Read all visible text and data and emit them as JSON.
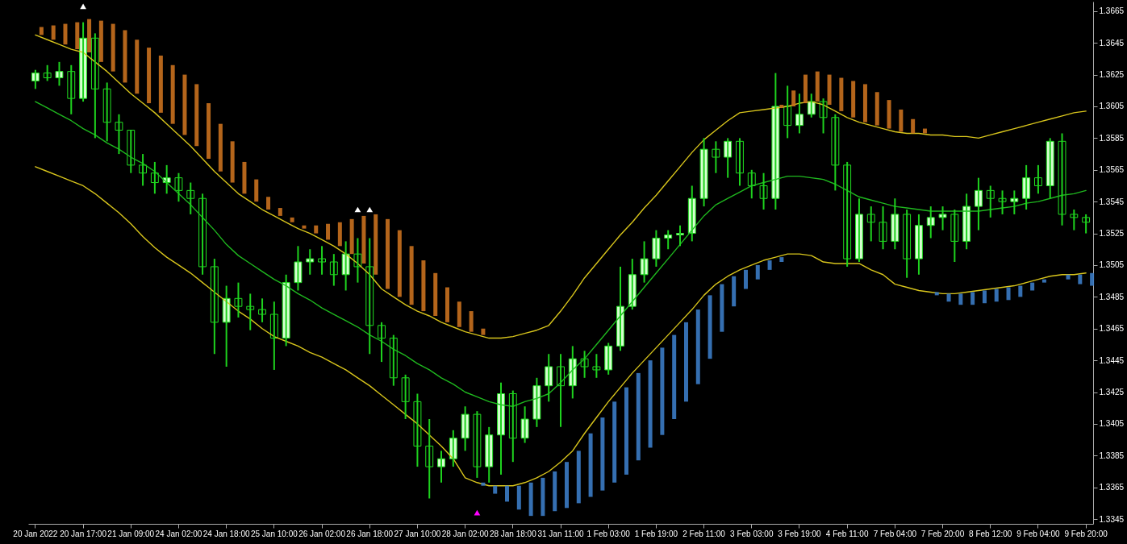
{
  "chart_data": {
    "type": "candlestick",
    "categories": [
      "20 Jan 2022",
      null,
      null,
      null,
      "20 Jan 17:00",
      null,
      null,
      null,
      "21 Jan 09:00",
      null,
      null,
      null,
      "24 Jan 02:00",
      null,
      null,
      null,
      "24 Jan 18:00",
      null,
      null,
      null,
      "25 Jan 10:00",
      null,
      null,
      null,
      "26 Jan 02:00",
      null,
      null,
      null,
      "26 Jan 18:00",
      null,
      null,
      null,
      "27 Jan 10:00",
      null,
      null,
      null,
      "28 Jan 02:00",
      null,
      null,
      null,
      "28 Jan 18:00",
      null,
      null,
      null,
      "31 Jan 11:00",
      null,
      null,
      null,
      "1 Feb 03:00",
      null,
      null,
      null,
      "1 Feb 19:00",
      null,
      null,
      null,
      "2 Feb 11:00",
      null,
      null,
      null,
      "3 Feb 03:00",
      null,
      null,
      null,
      "3 Feb 19:00",
      null,
      null,
      null,
      "4 Feb 11:00",
      null,
      null,
      null,
      "7 Feb 04:00",
      null,
      null,
      null,
      "7 Feb 20:00",
      null,
      null,
      null,
      "8 Feb 12:00",
      null,
      null,
      null,
      "9 Feb 04:00",
      null,
      null,
      null,
      "9 Feb 20:00"
    ],
    "ohlc": [
      [
        1.3621,
        1.3628,
        1.3616,
        1.3626
      ],
      [
        1.3626,
        1.3631,
        1.3621,
        1.3623
      ],
      [
        1.3623,
        1.3633,
        1.3618,
        1.3627
      ],
      [
        1.3627,
        1.3631,
        1.36,
        1.361
      ],
      [
        1.361,
        1.3658,
        1.3608,
        1.3648
      ],
      [
        1.3648,
        1.3651,
        1.3585,
        1.3616
      ],
      [
        1.3616,
        1.362,
        1.3583,
        1.3595
      ],
      [
        1.3595,
        1.36,
        1.3575,
        1.359
      ],
      [
        1.359,
        1.359,
        1.3563,
        1.3568
      ],
      [
        1.3568,
        1.3575,
        1.3555,
        1.3563
      ],
      [
        1.3563,
        1.357,
        1.355,
        1.3557
      ],
      [
        1.3557,
        1.3568,
        1.355,
        1.356
      ],
      [
        1.356,
        1.3563,
        1.3545,
        1.3552
      ],
      [
        1.3552,
        1.3557,
        1.3537,
        1.3547
      ],
      [
        1.3547,
        1.355,
        1.3499,
        1.3504
      ],
      [
        1.3504,
        1.3509,
        1.3449,
        1.3469
      ],
      [
        1.3469,
        1.3492,
        1.3441,
        1.3484
      ],
      [
        1.3484,
        1.3494,
        1.3472,
        1.3479
      ],
      [
        1.3479,
        1.3487,
        1.3464,
        1.3477
      ],
      [
        1.3477,
        1.3484,
        1.3469,
        1.3474
      ],
      [
        1.3474,
        1.3482,
        1.3439,
        1.3459
      ],
      [
        1.3459,
        1.3499,
        1.3454,
        1.3494
      ],
      [
        1.3494,
        1.3517,
        1.3489,
        1.3507
      ],
      [
        1.3507,
        1.3515,
        1.3499,
        1.3509
      ],
      [
        1.3509,
        1.3517,
        1.3499,
        1.3507
      ],
      [
        1.3507,
        1.3512,
        1.3492,
        1.3499
      ],
      [
        1.3499,
        1.352,
        1.3489,
        1.3512
      ],
      [
        1.3512,
        1.3522,
        1.3494,
        1.3504
      ],
      [
        1.3504,
        1.3522,
        1.3449,
        1.3467
      ],
      [
        1.3467,
        1.3469,
        1.3444,
        1.3459
      ],
      [
        1.3459,
        1.3461,
        1.3429,
        1.3434
      ],
      [
        1.3434,
        1.3436,
        1.3408,
        1.3419
      ],
      [
        1.3419,
        1.3424,
        1.3378,
        1.3391
      ],
      [
        1.3391,
        1.3408,
        1.3358,
        1.3378
      ],
      [
        1.3378,
        1.3388,
        1.3368,
        1.3383
      ],
      [
        1.3383,
        1.3401,
        1.3378,
        1.3396
      ],
      [
        1.3396,
        1.3416,
        1.3388,
        1.3411
      ],
      [
        1.3411,
        1.3413,
        1.3371,
        1.3378
      ],
      [
        1.3378,
        1.3403,
        1.3368,
        1.3398
      ],
      [
        1.3398,
        1.3431,
        1.3373,
        1.3424
      ],
      [
        1.3424,
        1.3426,
        1.3381,
        1.3396
      ],
      [
        1.3396,
        1.3416,
        1.3393,
        1.3408
      ],
      [
        1.3408,
        1.3434,
        1.3403,
        1.3429
      ],
      [
        1.3429,
        1.3449,
        1.3419,
        1.3441
      ],
      [
        1.3441,
        1.3449,
        1.3403,
        1.3429
      ],
      [
        1.3429,
        1.3454,
        1.3421,
        1.3446
      ],
      [
        1.3446,
        1.3451,
        1.3434,
        1.3441
      ],
      [
        1.3441,
        1.3449,
        1.3434,
        1.3439
      ],
      [
        1.3439,
        1.3456,
        1.3436,
        1.3454
      ],
      [
        1.3454,
        1.3504,
        1.3451,
        1.3479
      ],
      [
        1.3479,
        1.3509,
        1.3477,
        1.3499
      ],
      [
        1.3499,
        1.352,
        1.3494,
        1.3509
      ],
      [
        1.3509,
        1.3527,
        1.3504,
        1.3522
      ],
      [
        1.3522,
        1.3527,
        1.3515,
        1.3524
      ],
      [
        1.3524,
        1.353,
        1.3517,
        1.3525
      ],
      [
        1.3525,
        1.3555,
        1.352,
        1.3547
      ],
      [
        1.3547,
        1.3585,
        1.3542,
        1.3578
      ],
      [
        1.3578,
        1.3583,
        1.3563,
        1.3573
      ],
      [
        1.3573,
        1.3585,
        1.356,
        1.3583
      ],
      [
        1.3583,
        1.3585,
        1.3555,
        1.3563
      ],
      [
        1.3563,
        1.3565,
        1.3547,
        1.3555
      ],
      [
        1.3555,
        1.3563,
        1.354,
        1.3547
      ],
      [
        1.3547,
        1.3626,
        1.354,
        1.3605
      ],
      [
        1.3605,
        1.3618,
        1.3585,
        1.3593
      ],
      [
        1.3593,
        1.3613,
        1.3588,
        1.36
      ],
      [
        1.36,
        1.3613,
        1.3598,
        1.3608
      ],
      [
        1.3608,
        1.361,
        1.3588,
        1.3598
      ],
      [
        1.3598,
        1.36,
        1.3552,
        1.3568
      ],
      [
        1.3568,
        1.357,
        1.3504,
        1.3509
      ],
      [
        1.3509,
        1.3547,
        1.3507,
        1.3537
      ],
      [
        1.3537,
        1.3542,
        1.352,
        1.3532
      ],
      [
        1.3532,
        1.3542,
        1.3515,
        1.352
      ],
      [
        1.352,
        1.3547,
        1.3515,
        1.3537
      ],
      [
        1.3537,
        1.354,
        1.3497,
        1.3509
      ],
      [
        1.3509,
        1.3537,
        1.3499,
        1.353
      ],
      [
        1.353,
        1.3542,
        1.3522,
        1.3535
      ],
      [
        1.3535,
        1.3542,
        1.3527,
        1.3537
      ],
      [
        1.3537,
        1.354,
        1.3507,
        1.352
      ],
      [
        1.352,
        1.355,
        1.3515,
        1.3542
      ],
      [
        1.3542,
        1.356,
        1.3527,
        1.3552
      ],
      [
        1.3552,
        1.3555,
        1.3535,
        1.3547
      ],
      [
        1.3547,
        1.3552,
        1.3537,
        1.3545
      ],
      [
        1.3545,
        1.3552,
        1.3537,
        1.3547
      ],
      [
        1.3547,
        1.3568,
        1.354,
        1.356
      ],
      [
        1.356,
        1.3568,
        1.355,
        1.3555
      ],
      [
        1.3555,
        1.3585,
        1.3547,
        1.3583
      ],
      [
        1.3583,
        1.3588,
        1.353,
        1.3537
      ],
      [
        1.3537,
        1.354,
        1.3527,
        1.3535
      ],
      [
        1.3535,
        1.3537,
        1.3525,
        1.3532
      ]
    ],
    "series": [
      {
        "type": "bar",
        "color": "#c8701e",
        "base": [
          1.365,
          1.3647,
          1.3644,
          1.3641,
          1.3639,
          1.3633,
          1.3627,
          1.362,
          1.3613,
          1.3607,
          1.3601,
          1.3594,
          1.3587,
          1.358,
          1.3572,
          1.3564,
          1.3557,
          1.355,
          1.3545,
          1.354,
          1.3536,
          1.3532,
          1.3528,
          1.3525,
          1.3521,
          1.3517,
          1.3512,
          1.3506,
          1.3499,
          1.349,
          1.3485,
          1.348,
          1.3476,
          1.3473,
          1.3469,
          1.3466,
          1.3463,
          1.3461,
          null,
          null,
          null,
          null,
          null,
          null,
          null,
          null,
          null,
          null,
          null,
          null,
          null,
          null,
          null,
          null,
          null,
          null,
          null,
          null,
          null,
          null,
          null,
          null,
          1.3604,
          1.3605,
          1.3607,
          1.3608,
          1.3606,
          1.3602,
          1.3598,
          1.3595,
          1.3593,
          1.3591,
          1.3589,
          1.3588,
          1.3588,
          null,
          null,
          null,
          null,
          null,
          null,
          null,
          null,
          null,
          null,
          null,
          null,
          null,
          null
        ],
        "values": [
          0.0005,
          0.0009,
          0.0013,
          0.0017,
          0.0021,
          0.0026,
          0.003,
          0.0033,
          0.0034,
          0.0035,
          0.0036,
          0.0037,
          0.0038,
          0.0039,
          0.0035,
          0.003,
          0.0026,
          0.002,
          0.0014,
          0.0008,
          0.0005,
          0.0003,
          0.0002,
          0.0005,
          0.001,
          0.0015,
          0.0022,
          0.003,
          0.0038,
          0.0044,
          0.0042,
          0.0037,
          0.0032,
          0.0027,
          0.0022,
          0.0016,
          0.0013,
          0.0004,
          null,
          null,
          null,
          null,
          null,
          null,
          null,
          null,
          null,
          null,
          null,
          null,
          null,
          null,
          null,
          null,
          null,
          null,
          null,
          null,
          null,
          null,
          null,
          null,
          0.0002,
          0.001,
          0.0018,
          0.0019,
          0.0019,
          0.0021,
          0.0023,
          0.0024,
          0.0021,
          0.0018,
          0.0014,
          0.0009,
          0.0003,
          null,
          null,
          null,
          null,
          null,
          null,
          null,
          null,
          null,
          null,
          null,
          null,
          null,
          null
        ]
      },
      {
        "type": "bar",
        "color": "#3b7bc4",
        "base": [
          null,
          null,
          null,
          null,
          null,
          null,
          null,
          null,
          null,
          null,
          null,
          null,
          null,
          null,
          null,
          null,
          null,
          null,
          null,
          null,
          null,
          null,
          null,
          null,
          null,
          null,
          null,
          null,
          null,
          null,
          null,
          null,
          null,
          null,
          null,
          null,
          null,
          1.3368,
          1.3366,
          1.3366,
          1.3366,
          1.3368,
          1.3371,
          1.3375,
          1.3381,
          1.3388,
          1.3399,
          1.3409,
          1.3419,
          1.3428,
          1.3437,
          1.3445,
          1.3453,
          1.3461,
          1.3469,
          1.3477,
          1.3486,
          1.3493,
          1.3498,
          1.3502,
          1.3505,
          1.3508,
          1.351,
          null,
          null,
          null,
          null,
          null,
          null,
          null,
          null,
          null,
          null,
          null,
          null,
          1.3488,
          1.3487,
          1.3487,
          1.3488,
          1.3489,
          1.349,
          1.3491,
          1.3492,
          1.3494,
          1.3496,
          null,
          1.3499,
          1.3499,
          1.35
        ],
        "values": [
          null,
          null,
          null,
          null,
          null,
          null,
          null,
          null,
          null,
          null,
          null,
          null,
          null,
          null,
          null,
          null,
          null,
          null,
          null,
          null,
          null,
          null,
          null,
          null,
          null,
          null,
          null,
          null,
          null,
          null,
          null,
          null,
          null,
          null,
          null,
          null,
          null,
          -0.0002,
          -0.0005,
          -0.001,
          -0.0015,
          -0.0021,
          -0.0024,
          -0.0025,
          -0.0029,
          -0.0033,
          -0.004,
          -0.0046,
          -0.0051,
          -0.0055,
          -0.0055,
          -0.0055,
          -0.0055,
          -0.0053,
          -0.005,
          -0.0047,
          -0.004,
          -0.003,
          -0.0019,
          -0.0012,
          -0.0009,
          -0.0006,
          -0.0003,
          null,
          null,
          null,
          null,
          null,
          null,
          null,
          null,
          null,
          null,
          null,
          null,
          -0.0002,
          -0.0005,
          -0.0007,
          -0.0008,
          -0.0008,
          -0.0008,
          -0.0008,
          -0.0007,
          -0.0005,
          -0.0002,
          null,
          -0.0003,
          -0.0006,
          -0.0008
        ]
      },
      {
        "type": "line",
        "color": "#d8c51c",
        "values": [
          1.365,
          1.3647,
          1.3644,
          1.3641,
          1.3639,
          1.3633,
          1.3627,
          1.362,
          1.3613,
          1.3607,
          1.3601,
          1.3594,
          1.3587,
          1.358,
          1.3572,
          1.3564,
          1.3557,
          1.355,
          1.3545,
          1.354,
          1.3536,
          1.3532,
          1.3528,
          1.3525,
          1.3521,
          1.3517,
          1.3512,
          1.3506,
          1.3499,
          1.349,
          1.3485,
          1.348,
          1.3476,
          1.3473,
          1.3469,
          1.3466,
          1.3463,
          1.3461,
          1.3459,
          1.3459,
          1.346,
          1.3462,
          1.3464,
          1.3467,
          1.3476,
          1.3486,
          1.3497,
          1.3506,
          1.3515,
          1.3524,
          1.3532,
          1.3541,
          1.3549,
          1.3558,
          1.3567,
          1.3576,
          1.3584,
          1.359,
          1.3596,
          1.3601,
          1.3602,
          1.3603,
          1.3604,
          1.3605,
          1.3607,
          1.3608,
          1.3606,
          1.3602,
          1.3598,
          1.3595,
          1.3593,
          1.3591,
          1.3589,
          1.3588,
          1.3588,
          1.3587,
          1.3587,
          1.3586,
          1.3586,
          1.3585,
          1.3587,
          1.3589,
          1.3591,
          1.3593,
          1.3595,
          1.3597,
          1.3599,
          1.3601,
          1.3602
        ]
      },
      {
        "type": "line",
        "color": "#1fb81f",
        "values": [
          1.3608,
          1.3604,
          1.36,
          1.3596,
          1.3591,
          1.3587,
          1.3582,
          1.3578,
          1.3573,
          1.3569,
          1.3564,
          1.3557,
          1.355,
          1.3543,
          1.3535,
          1.3527,
          1.3518,
          1.3511,
          1.3506,
          1.3501,
          1.3496,
          1.3492,
          1.3487,
          1.3483,
          1.3478,
          1.3474,
          1.347,
          1.3466,
          1.3461,
          1.3457,
          1.3452,
          1.3448,
          1.3443,
          1.3439,
          1.3434,
          1.343,
          1.3425,
          1.3422,
          1.3419,
          1.3417,
          1.3416,
          1.3419,
          1.3421,
          1.3424,
          1.3431,
          1.3439,
          1.3446,
          1.3455,
          1.3464,
          1.3473,
          1.3482,
          1.3491,
          1.35,
          1.3509,
          1.3518,
          1.3527,
          1.3536,
          1.3543,
          1.3547,
          1.3551,
          1.3555,
          1.3557,
          1.3559,
          1.3561,
          1.3561,
          1.356,
          1.3559,
          1.3556,
          1.3552,
          1.3548,
          1.3546,
          1.3544,
          1.3542,
          1.3541,
          1.354,
          1.3539,
          1.3539,
          1.3539,
          1.3539,
          1.3539,
          1.354,
          1.3541,
          1.3542,
          1.3544,
          1.3545,
          1.3547,
          1.3549,
          1.355,
          1.3552
        ]
      },
      {
        "type": "line",
        "color": "#d8c51c",
        "values": [
          1.3567,
          1.3564,
          1.3561,
          1.3558,
          1.3555,
          1.355,
          1.3544,
          1.3538,
          1.3531,
          1.3523,
          1.3516,
          1.351,
          1.3505,
          1.35,
          1.3494,
          1.3488,
          1.3482,
          1.3476,
          1.3471,
          1.3465,
          1.346,
          1.3457,
          1.3454,
          1.345,
          1.3447,
          1.3443,
          1.3439,
          1.3434,
          1.3429,
          1.3423,
          1.3417,
          1.3411,
          1.3405,
          1.3398,
          1.3391,
          1.3383,
          1.3371,
          1.3368,
          1.3366,
          1.3366,
          1.3366,
          1.3368,
          1.3371,
          1.3375,
          1.3381,
          1.3388,
          1.3399,
          1.3409,
          1.3419,
          1.3428,
          1.3437,
          1.3445,
          1.3453,
          1.3461,
          1.3469,
          1.3477,
          1.3486,
          1.3493,
          1.3498,
          1.3502,
          1.3505,
          1.3508,
          1.351,
          1.3512,
          1.3512,
          1.3511,
          1.3507,
          1.3506,
          1.3506,
          1.3506,
          1.3502,
          1.3499,
          1.3493,
          1.3491,
          1.3489,
          1.3488,
          1.3487,
          1.3487,
          1.3488,
          1.3489,
          1.349,
          1.3491,
          1.3492,
          1.3494,
          1.3496,
          1.3498,
          1.3499,
          1.3499,
          1.35
        ]
      },
      {
        "type": "scatter",
        "color": "#ffffff",
        "marker": "triangle",
        "values": [
          null,
          null,
          null,
          null,
          1.3668,
          null,
          null,
          null,
          null,
          null,
          null,
          null,
          null,
          null,
          null,
          null,
          null,
          null,
          null,
          null,
          null,
          null,
          null,
          null,
          null,
          null,
          null,
          1.354,
          1.354,
          null,
          null,
          null,
          null,
          null,
          null,
          null,
          null,
          null,
          null,
          null,
          null,
          null,
          null,
          null,
          null,
          null,
          null,
          null,
          null,
          null,
          null,
          null,
          null,
          null,
          null,
          null,
          null,
          null,
          null,
          null,
          null,
          null,
          null,
          null,
          null,
          null,
          null,
          null,
          null,
          null,
          null,
          null,
          null,
          null,
          null,
          null,
          null,
          null,
          null,
          null,
          null,
          null,
          null,
          null,
          null,
          null,
          null,
          null,
          null
        ]
      },
      {
        "type": "scatter",
        "color": "#ff00ff",
        "marker": "triangle",
        "values": [
          null,
          null,
          null,
          null,
          null,
          null,
          null,
          null,
          null,
          null,
          null,
          null,
          null,
          null,
          null,
          null,
          null,
          null,
          null,
          null,
          null,
          null,
          null,
          null,
          null,
          null,
          null,
          null,
          null,
          null,
          null,
          null,
          null,
          null,
          null,
          null,
          null,
          1.3349,
          null,
          null,
          null,
          null,
          null,
          null,
          null,
          null,
          null,
          null,
          null,
          null,
          null,
          null,
          null,
          null,
          null,
          null,
          null,
          null,
          null,
          null,
          null,
          null,
          null,
          null,
          null,
          null,
          null,
          null,
          null,
          null,
          null,
          null,
          null,
          null,
          null,
          null,
          null,
          null,
          null,
          null,
          null,
          null,
          null,
          null,
          null,
          null,
          null,
          null,
          null
        ]
      }
    ],
    "ylim": [
      1.3342,
      1.3671
    ],
    "yticks": [
      1.3345,
      1.3365,
      1.3385,
      1.3405,
      1.3425,
      1.3445,
      1.3465,
      1.3485,
      1.3505,
      1.3525,
      1.3545,
      1.3565,
      1.3585,
      1.3605,
      1.3625,
      1.3645,
      1.3665
    ]
  }
}
